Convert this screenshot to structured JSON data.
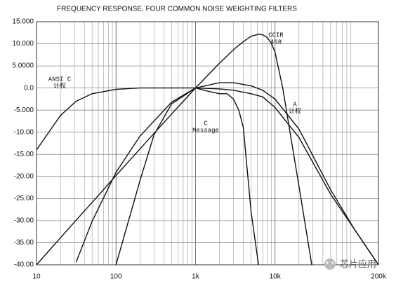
{
  "chart_data": {
    "type": "line",
    "title": "FREQUENCY RESPONSE, FOUR COMMON NOISE WEIGHTING FILTERS",
    "xscale": "log",
    "grid": true,
    "minor_grid": true,
    "color": "#111111",
    "xlim": [
      10,
      200000
    ],
    "xticks": [
      10,
      100,
      {
        "value": 1000,
        "label": "1k"
      },
      {
        "value": 10000,
        "label": "10k"
      },
      {
        "value": 200000,
        "label": "200k"
      }
    ],
    "ylim": [
      -40,
      15
    ],
    "yticks": [
      {
        "value": 15,
        "label": "15.000"
      },
      {
        "value": 10,
        "label": "10.000"
      },
      {
        "value": 5,
        "label": "5.0000"
      },
      {
        "value": 0,
        "label": "0.0"
      },
      {
        "value": -5,
        "label": "-5.000"
      },
      {
        "value": -10,
        "label": "-10.00"
      },
      {
        "value": -15,
        "label": "-15.00"
      },
      {
        "value": -20,
        "label": "-20.00"
      },
      {
        "value": -25,
        "label": "-25.00"
      },
      {
        "value": -30,
        "label": "-30.00"
      },
      {
        "value": -35,
        "label": "-35.00"
      },
      {
        "value": -40,
        "label": "-40.00"
      }
    ],
    "series": [
      {
        "name_lines": [
          "ANSI C",
          "计权"
        ],
        "color": "#111111",
        "x": [
          10,
          20,
          31.5,
          50,
          100,
          200,
          500,
          1000,
          2000,
          3000,
          5000,
          7000,
          10000,
          20000,
          50000,
          100000,
          200000
        ],
        "values": [
          -14,
          -6.2,
          -3,
          -1.3,
          -0.3,
          0,
          0,
          0,
          -0.2,
          -0.5,
          -1.3,
          -2,
          -4.4,
          -11.2,
          -24,
          -32,
          -40
        ]
      },
      {
        "name_lines": [
          "CCIR",
          "468"
        ],
        "color": "#111111",
        "x": [
          10,
          31.5,
          63,
          100,
          200,
          400,
          800,
          1000,
          2000,
          3150,
          4000,
          5000,
          6300,
          7100,
          8000,
          9000,
          10000,
          12500,
          14000,
          16000,
          20000,
          29000
        ],
        "values": [
          -40,
          -29.9,
          -23.9,
          -19.8,
          -13.8,
          -7.8,
          -1.9,
          0,
          5.6,
          9,
          10.5,
          11.7,
          12.2,
          12,
          11.4,
          10.1,
          8.1,
          0,
          -5.3,
          -11.7,
          -22.2,
          -40
        ]
      },
      {
        "name_lines": [
          "A",
          "计权"
        ],
        "color": "#111111",
        "x": [
          31.5,
          50,
          100,
          200,
          500,
          1000,
          2000,
          3000,
          5000,
          7000,
          10000,
          20000,
          50000,
          100000,
          200000
        ],
        "values": [
          -39.4,
          -30.2,
          -19.1,
          -10.9,
          -3.2,
          0,
          1.2,
          1.2,
          0.5,
          -0.5,
          -2.5,
          -9.3,
          -23,
          -32,
          -40
        ]
      },
      {
        "name_lines": [
          "C",
          "Message"
        ],
        "color": "#111111",
        "x": [
          100,
          200,
          300,
          500,
          1000,
          1500,
          2000,
          2500,
          3000,
          3500,
          4000,
          5000,
          6200
        ],
        "values": [
          -40,
          -21,
          -10.6,
          -3.6,
          0,
          -0.8,
          -1.3,
          -1.3,
          -2.5,
          -5,
          -9,
          -28,
          -40
        ]
      }
    ]
  },
  "watermark": "芯片应用"
}
